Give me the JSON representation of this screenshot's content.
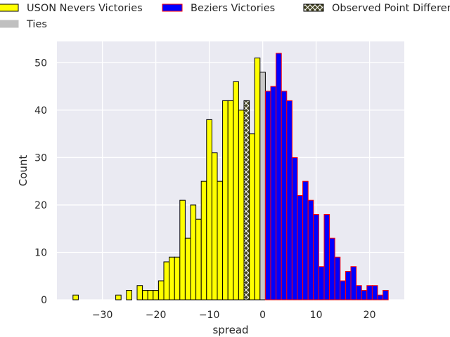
{
  "chart_data": {
    "type": "bar",
    "title": "",
    "xlabel": "spread",
    "ylabel": "Count",
    "xlim": [
      -38.5,
      26.5
    ],
    "ylim": [
      0,
      54.5
    ],
    "xticks": [
      -30,
      -20,
      -10,
      0,
      10,
      20
    ],
    "yticks": [
      0,
      10,
      20,
      30,
      40,
      50
    ],
    "grid": true,
    "background": "#eaeaf2",
    "legend": {
      "placement": "top",
      "entries": [
        {
          "label": "USON Nevers Victories",
          "fill": "#ffff00",
          "edge": "#000000",
          "hatch": false
        },
        {
          "label": "Beziers Victories",
          "fill": "#0000ff",
          "edge": "#ff0000",
          "hatch": false
        },
        {
          "label": "Observed Point Difference",
          "fill": "#444422",
          "edge": "#000000",
          "hatch": true
        },
        {
          "label": "Ties",
          "fill": "#c0c0c0",
          "edge": "#c0c0c0",
          "hatch": false
        }
      ]
    },
    "series": [
      {
        "name": "USON Nevers Victories",
        "color": "#ffff00",
        "edge": "#000000",
        "x": [
          -35,
          -27,
          -25,
          -23,
          -22,
          -21,
          -20,
          -19,
          -18,
          -17,
          -16,
          -15,
          -14,
          -13,
          -12,
          -11,
          -10,
          -9,
          -8,
          -7,
          -6,
          -5,
          -4,
          -2,
          -1
        ],
        "counts": [
          1,
          1,
          2,
          3,
          2,
          2,
          2,
          4,
          8,
          9,
          9,
          21,
          13,
          20,
          17,
          25,
          38,
          31,
          25,
          42,
          42,
          46,
          40,
          35,
          51
        ]
      },
      {
        "name": "Observed Point Difference",
        "color": "#444422",
        "edge": "#000000",
        "x": [
          -3
        ],
        "counts": [
          42
        ]
      },
      {
        "name": "Ties",
        "color": "#c8c8c8",
        "edge": "#000000",
        "x": [
          0
        ],
        "counts": [
          48
        ]
      },
      {
        "name": "Beziers Victories",
        "color": "#0000ff",
        "edge": "#ff0000",
        "x": [
          1,
          2,
          3,
          4,
          5,
          6,
          7,
          8,
          9,
          10,
          11,
          12,
          13,
          14,
          15,
          16,
          17,
          18,
          19,
          20,
          21,
          22,
          23
        ],
        "counts": [
          44,
          45,
          52,
          44,
          42,
          30,
          22,
          25,
          21,
          18,
          7,
          18,
          13,
          9,
          4,
          6,
          7,
          3,
          2,
          3,
          3,
          1,
          2
        ]
      }
    ]
  }
}
